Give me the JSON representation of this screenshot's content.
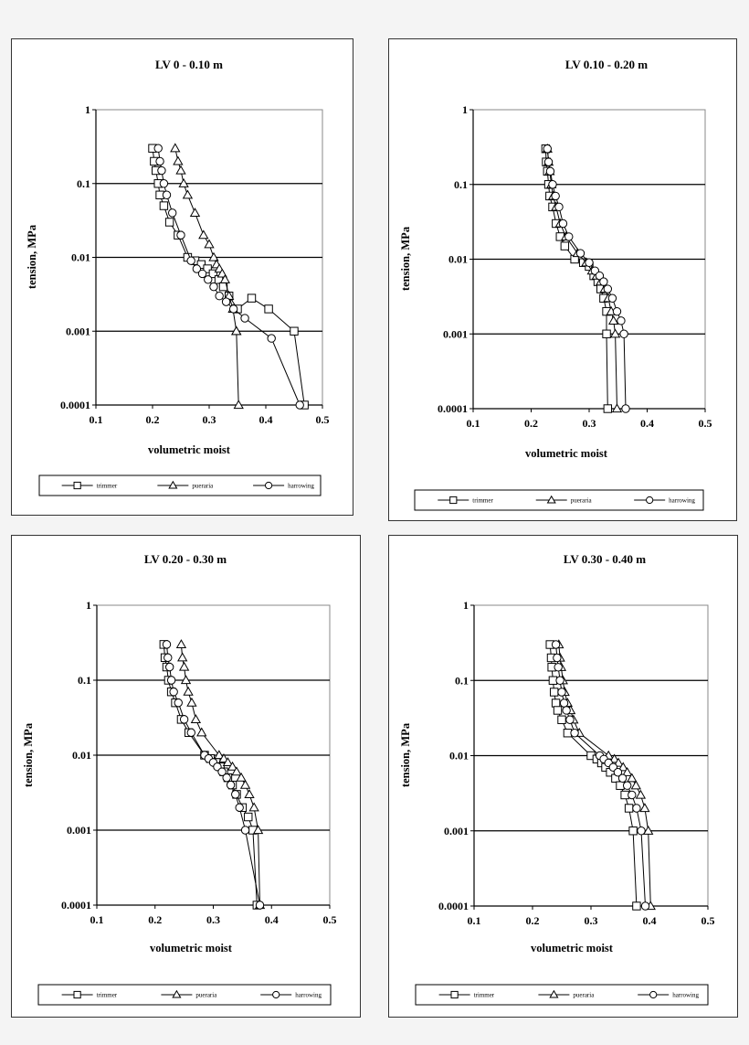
{
  "chart_data": [
    {
      "type": "scatter",
      "title": "LV 0 - 0.10 m",
      "xlabel": "volumetric moist",
      "ylabel": "tension, MPa",
      "xlim": [
        0.1,
        0.5
      ],
      "ylim": [
        0.0001,
        1
      ],
      "yscale": "log",
      "x_ticks": [
        "0.1",
        "0.2",
        "0.3",
        "0.4",
        "0.5"
      ],
      "y_ticks": [
        "1",
        "0.1",
        "0.01",
        "0.001",
        "0.0001"
      ],
      "y_tick_values": [
        1,
        0.1,
        0.01,
        0.001,
        0.0001
      ],
      "legend_position": "bottom",
      "series": [
        {
          "name": "trimmer",
          "marker": "square",
          "x": [
            0.2,
            0.203,
            0.206,
            0.21,
            0.213,
            0.22,
            0.23,
            0.245,
            0.262,
            0.275,
            0.286,
            0.297,
            0.307,
            0.317,
            0.325,
            0.335,
            0.35,
            0.375,
            0.405,
            0.45,
            0.468
          ],
          "y": [
            0.3,
            0.2,
            0.15,
            0.1,
            0.07,
            0.05,
            0.03,
            0.02,
            0.01,
            0.009,
            0.008,
            0.007,
            0.006,
            0.005,
            0.004,
            0.003,
            0.002,
            0.0028,
            0.002,
            0.001,
            0.0001
          ]
        },
        {
          "name": "pueraria",
          "marker": "triangle",
          "x": [
            0.24,
            0.245,
            0.25,
            0.255,
            0.262,
            0.275,
            0.29,
            0.3,
            0.308,
            0.313,
            0.318,
            0.323,
            0.328,
            0.335,
            0.342,
            0.348,
            0.348,
            0.352
          ],
          "y": [
            0.3,
            0.2,
            0.15,
            0.1,
            0.07,
            0.04,
            0.02,
            0.015,
            0.01,
            0.008,
            0.007,
            0.006,
            0.005,
            0.003,
            0.002,
            0.001,
            0.001,
            0.0001
          ]
        },
        {
          "name": "harrowing",
          "marker": "circle",
          "x": [
            0.21,
            0.213,
            0.216,
            0.22,
            0.225,
            0.235,
            0.25,
            0.268,
            0.278,
            0.288,
            0.298,
            0.308,
            0.318,
            0.33,
            0.343,
            0.363,
            0.41,
            0.46
          ],
          "y": [
            0.3,
            0.2,
            0.15,
            0.1,
            0.07,
            0.04,
            0.02,
            0.009,
            0.007,
            0.006,
            0.005,
            0.004,
            0.003,
            0.0025,
            0.002,
            0.0015,
            0.0008,
            0.0001
          ]
        }
      ]
    },
    {
      "type": "scatter",
      "title": "LV 0.10 - 0.20 m",
      "xlabel": "volumetric moist",
      "ylabel": "tension, MPa",
      "xlim": [
        0.1,
        0.5
      ],
      "ylim": [
        0.0001,
        1
      ],
      "yscale": "log",
      "x_ticks": [
        "0.1",
        "0.2",
        "0.3",
        "0.4",
        "0.5"
      ],
      "y_ticks": [
        "1",
        "0.1",
        "0.01",
        "0.001",
        "0.0001"
      ],
      "y_tick_values": [
        1,
        0.1,
        0.01,
        0.001,
        0.0001
      ],
      "legend_position": "bottom",
      "series": [
        {
          "name": "trimmer",
          "marker": "square",
          "x": [
            0.225,
            0.226,
            0.228,
            0.23,
            0.232,
            0.237,
            0.243,
            0.25,
            0.258,
            0.275,
            0.29,
            0.3,
            0.308,
            0.315,
            0.32,
            0.325,
            0.33,
            0.33,
            0.332
          ],
          "y": [
            0.3,
            0.2,
            0.15,
            0.1,
            0.07,
            0.05,
            0.03,
            0.02,
            0.015,
            0.01,
            0.009,
            0.008,
            0.006,
            0.005,
            0.004,
            0.003,
            0.002,
            0.001,
            0.0001
          ]
        },
        {
          "name": "pueraria",
          "marker": "triangle",
          "x": [
            0.228,
            0.23,
            0.232,
            0.235,
            0.238,
            0.243,
            0.25,
            0.26,
            0.28,
            0.295,
            0.305,
            0.313,
            0.32,
            0.327,
            0.333,
            0.338,
            0.342,
            0.345,
            0.348
          ],
          "y": [
            0.3,
            0.2,
            0.15,
            0.1,
            0.07,
            0.05,
            0.03,
            0.02,
            0.012,
            0.009,
            0.007,
            0.006,
            0.005,
            0.004,
            0.003,
            0.002,
            0.0015,
            0.001,
            0.0001
          ]
        },
        {
          "name": "harrowing",
          "marker": "circle",
          "x": [
            0.228,
            0.23,
            0.233,
            0.237,
            0.242,
            0.248,
            0.255,
            0.265,
            0.285,
            0.3,
            0.31,
            0.318,
            0.325,
            0.332,
            0.34,
            0.348,
            0.355,
            0.36,
            0.363
          ],
          "y": [
            0.3,
            0.2,
            0.15,
            0.1,
            0.07,
            0.05,
            0.03,
            0.02,
            0.012,
            0.009,
            0.007,
            0.006,
            0.005,
            0.004,
            0.003,
            0.002,
            0.0015,
            0.001,
            0.0001
          ]
        }
      ]
    },
    {
      "type": "scatter",
      "title": "LV 0.20 - 0.30 m",
      "xlabel": "volumetric moist",
      "ylabel": "tension, MPa",
      "xlim": [
        0.1,
        0.5
      ],
      "ylim": [
        0.0001,
        1
      ],
      "yscale": "log",
      "x_ticks": [
        "0.1",
        "0.2",
        "0.3",
        "0.4",
        "0.5"
      ],
      "y_ticks": [
        "1",
        "0.1",
        "0.01",
        "0.001",
        "0.0001"
      ],
      "y_tick_values": [
        1,
        0.1,
        0.01,
        0.001,
        0.0001
      ],
      "legend_position": "bottom",
      "series": [
        {
          "name": "trimmer",
          "marker": "square",
          "x": [
            0.215,
            0.217,
            0.22,
            0.223,
            0.228,
            0.235,
            0.245,
            0.258,
            0.285,
            0.295,
            0.305,
            0.312,
            0.318,
            0.325,
            0.333,
            0.34,
            0.35,
            0.36,
            0.368,
            0.375
          ],
          "y": [
            0.3,
            0.2,
            0.15,
            0.1,
            0.07,
            0.05,
            0.03,
            0.02,
            0.01,
            0.009,
            0.008,
            0.007,
            0.006,
            0.005,
            0.004,
            0.003,
            0.002,
            0.0015,
            0.001,
            0.0001
          ]
        },
        {
          "name": "pueraria",
          "marker": "triangle",
          "x": [
            0.245,
            0.247,
            0.25,
            0.253,
            0.257,
            0.263,
            0.27,
            0.28,
            0.31,
            0.318,
            0.325,
            0.333,
            0.34,
            0.348,
            0.355,
            0.362,
            0.37,
            0.377,
            0.38
          ],
          "y": [
            0.3,
            0.2,
            0.15,
            0.1,
            0.07,
            0.05,
            0.03,
            0.02,
            0.01,
            0.009,
            0.008,
            0.007,
            0.006,
            0.005,
            0.004,
            0.003,
            0.002,
            0.001,
            0.0001
          ]
        },
        {
          "name": "harrowing",
          "marker": "circle",
          "x": [
            0.22,
            0.222,
            0.225,
            0.228,
            0.232,
            0.24,
            0.25,
            0.262,
            0.285,
            0.292,
            0.3,
            0.307,
            0.315,
            0.323,
            0.33,
            0.338,
            0.345,
            0.355,
            0.38
          ],
          "y": [
            0.3,
            0.2,
            0.15,
            0.1,
            0.07,
            0.05,
            0.03,
            0.02,
            0.01,
            0.009,
            0.008,
            0.007,
            0.006,
            0.005,
            0.004,
            0.003,
            0.002,
            0.001,
            0.0001
          ]
        }
      ]
    },
    {
      "type": "scatter",
      "title": "LV 0.30 - 0.40 m",
      "xlabel": "volumetric moist",
      "ylabel": "tension, MPa",
      "xlim": [
        0.1,
        0.5
      ],
      "ylim": [
        0.0001,
        1
      ],
      "yscale": "log",
      "x_ticks": [
        "0.1",
        "0.2",
        "0.3",
        "0.4",
        "0.5"
      ],
      "y_ticks": [
        "1",
        "0.1",
        "0.01",
        "0.001",
        "0.0001"
      ],
      "y_tick_values": [
        1,
        0.1,
        0.01,
        0.001,
        0.0001
      ],
      "legend_position": "bottom",
      "series": [
        {
          "name": "trimmer",
          "marker": "square",
          "x": [
            0.23,
            0.232,
            0.233,
            0.235,
            0.237,
            0.24,
            0.243,
            0.25,
            0.26,
            0.3,
            0.31,
            0.318,
            0.325,
            0.333,
            0.342,
            0.35,
            0.358,
            0.365,
            0.372,
            0.378
          ],
          "y": [
            0.3,
            0.2,
            0.15,
            0.1,
            0.07,
            0.05,
            0.04,
            0.03,
            0.02,
            0.01,
            0.009,
            0.008,
            0.007,
            0.006,
            0.005,
            0.004,
            0.003,
            0.002,
            0.001,
            0.0001
          ]
        },
        {
          "name": "pueraria",
          "marker": "triangle",
          "x": [
            0.245,
            0.247,
            0.249,
            0.252,
            0.255,
            0.26,
            0.265,
            0.27,
            0.28,
            0.33,
            0.34,
            0.347,
            0.355,
            0.362,
            0.37,
            0.377,
            0.385,
            0.392,
            0.398,
            0.402
          ],
          "y": [
            0.3,
            0.2,
            0.15,
            0.1,
            0.07,
            0.05,
            0.04,
            0.03,
            0.02,
            0.01,
            0.009,
            0.008,
            0.007,
            0.006,
            0.005,
            0.004,
            0.003,
            0.002,
            0.001,
            0.0001
          ]
        },
        {
          "name": "harrowing",
          "marker": "circle",
          "x": [
            0.24,
            0.242,
            0.244,
            0.247,
            0.25,
            0.254,
            0.258,
            0.264,
            0.272,
            0.315,
            0.322,
            0.33,
            0.338,
            0.346,
            0.354,
            0.362,
            0.37,
            0.378,
            0.386,
            0.393
          ],
          "y": [
            0.3,
            0.2,
            0.15,
            0.1,
            0.07,
            0.05,
            0.04,
            0.03,
            0.02,
            0.01,
            0.009,
            0.008,
            0.007,
            0.006,
            0.005,
            0.004,
            0.003,
            0.002,
            0.001,
            0.0001
          ]
        }
      ]
    }
  ]
}
